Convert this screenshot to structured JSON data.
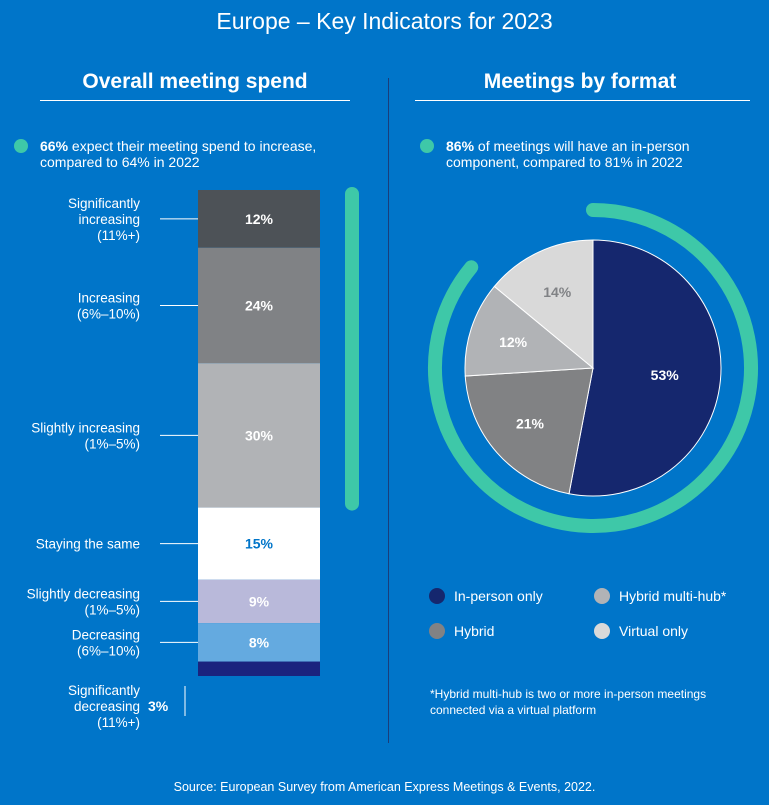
{
  "page": {
    "title": "Europe – Key Indicators for 2023",
    "source": "Source: European Survey from American Express Meetings & Events, 2022."
  },
  "left_panel": {
    "title": "Overall meeting spend",
    "callout_bold": "66%",
    "callout_text": " expect their meeting spend to increase, compared to 64% in 2022"
  },
  "right_panel": {
    "title": "Meetings by format",
    "callout_bold": "86%",
    "callout_text": " of meetings will have an in-person component, compared to 81% in 2022",
    "footnote": "*Hybrid multi-hub is two or more in-person meetings connected via a virtual platform"
  },
  "colors": {
    "background": "#0075c9",
    "accent_teal": "#3ec8a8"
  },
  "chart_data": [
    {
      "type": "bar",
      "stacked": true,
      "categories": [
        "Significantly increasing (11%+)",
        "Increasing (6%–10%)",
        "Slightly increasing (1%–5%)",
        "Staying the same",
        "Slightly decreasing (1%–5%)",
        "Decreasing (6%–10%)",
        "Significantly decreasing (11%+)"
      ],
      "label_lines": [
        [
          "Significantly",
          "increasing",
          "(11%+)"
        ],
        [
          "Increasing",
          "(6%–10%)"
        ],
        [
          "Slightly increasing",
          "(1%–5%)"
        ],
        [
          "Staying the same"
        ],
        [
          "Slightly decreasing",
          "(1%–5%)"
        ],
        [
          "Decreasing",
          "(6%–10%)"
        ],
        [
          "Significantly",
          "decreasing",
          "(11%+)"
        ]
      ],
      "values": [
        12,
        24,
        30,
        15,
        9,
        8,
        3
      ],
      "value_labels": [
        "12%",
        "24%",
        "30%",
        "15%",
        "9%",
        "8%",
        "3%"
      ],
      "colors": [
        "#4d5257",
        "#808285",
        "#b1b3b6",
        "#ffffff",
        "#b9b9da",
        "#64aae0",
        "#1a237e"
      ],
      "label_colors": [
        "#ffffff",
        "#ffffff",
        "#ffffff",
        "#0075c9",
        "#ffffff",
        "#ffffff",
        "#ffffff"
      ],
      "bracket_covers_first": 3
    },
    {
      "type": "pie",
      "labels": [
        "In-person only",
        "Hybrid",
        "Hybrid multi-hub*",
        "Virtual only"
      ],
      "values": [
        53,
        21,
        12,
        14
      ],
      "value_labels": [
        "53%",
        "21%",
        "12%",
        "14%"
      ],
      "colors": [
        "#15276e",
        "#818284",
        "#b1b3b6",
        "#d9d9d9"
      ],
      "legend": {
        "items": [
          {
            "label": "In-person only",
            "color": "#15276e"
          },
          {
            "label": "Hybrid multi-hub*",
            "color": "#b1b3b6"
          },
          {
            "label": "Hybrid",
            "color": "#818284"
          },
          {
            "label": "Virtual only",
            "color": "#d9d9d9"
          }
        ]
      },
      "ring_value": 86
    }
  ]
}
